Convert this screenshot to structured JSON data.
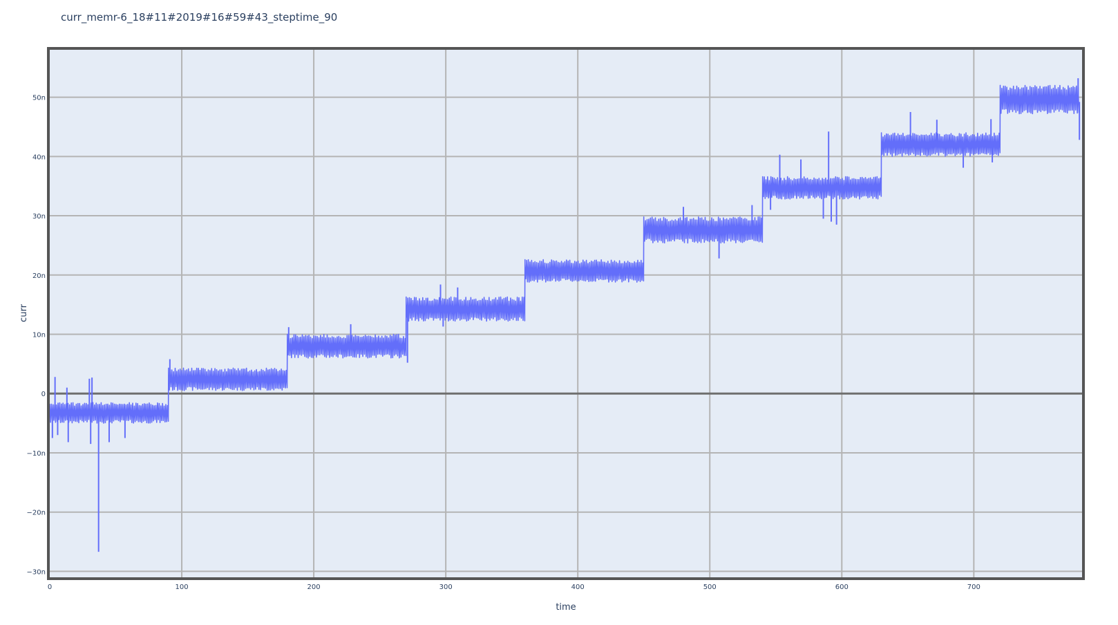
{
  "chart_data": {
    "type": "line",
    "title": "curr_memr-6_18#11#2019#16#59#43_steptime_90",
    "xlabel": "time",
    "ylabel": "curr",
    "xlim": [
      0,
      782
    ],
    "ylim": [
      -31,
      58
    ],
    "x_ticks": [
      0,
      100,
      200,
      300,
      400,
      500,
      600,
      700
    ],
    "x_tick_labels": [
      "0",
      "100",
      "200",
      "300",
      "400",
      "500",
      "600",
      "700"
    ],
    "y_ticks": [
      -30,
      -20,
      -10,
      0,
      10,
      20,
      30,
      40,
      50
    ],
    "y_tick_labels": [
      "−30n",
      "−20n",
      "−10n",
      "0",
      "10n",
      "20n",
      "30n",
      "40n",
      "50n"
    ],
    "y_unit": "n",
    "grid": true,
    "series": [
      {
        "color": "#636efa",
        "step_duration": 90,
        "steps": [
          {
            "x_start": 0,
            "x_end": 90,
            "low": -5,
            "high": -1.5,
            "mean": -3
          },
          {
            "x_start": 90,
            "x_end": 180,
            "low": 0.5,
            "high": 4.3,
            "mean": 2.4
          },
          {
            "x_start": 180,
            "x_end": 270,
            "low": 6,
            "high": 10,
            "mean": 7.8
          },
          {
            "x_start": 270,
            "x_end": 360,
            "low": 12.2,
            "high": 16.3,
            "mean": 14
          },
          {
            "x_start": 360,
            "x_end": 450,
            "low": 18.8,
            "high": 22.6,
            "mean": 20.6
          },
          {
            "x_start": 450,
            "x_end": 540,
            "low": 25.4,
            "high": 29.8,
            "mean": 27.4
          },
          {
            "x_start": 540,
            "x_end": 630,
            "low": 32.8,
            "high": 36.6,
            "mean": 34.7
          },
          {
            "x_start": 630,
            "x_end": 720,
            "low": 40,
            "high": 44,
            "mean": 42
          },
          {
            "x_start": 720,
            "x_end": 780,
            "low": 47.2,
            "high": 52,
            "mean": 49.2
          }
        ],
        "spikes": [
          {
            "x": 2,
            "y": -7.5
          },
          {
            "x": 4,
            "y": 2.8
          },
          {
            "x": 6,
            "y": -7
          },
          {
            "x": 13,
            "y": 1
          },
          {
            "x": 14,
            "y": -8.2
          },
          {
            "x": 30,
            "y": 2.5
          },
          {
            "x": 31,
            "y": -8.5
          },
          {
            "x": 32,
            "y": 2.7
          },
          {
            "x": 37,
            "y": -26.7
          },
          {
            "x": 45,
            "y": -8.2
          },
          {
            "x": 57,
            "y": -7.5
          },
          {
            "x": 91,
            "y": 5.8
          },
          {
            "x": 181,
            "y": 11.2
          },
          {
            "x": 228,
            "y": 11.7
          },
          {
            "x": 271,
            "y": 5.2
          },
          {
            "x": 296,
            "y": 18.4
          },
          {
            "x": 298,
            "y": 11.3
          },
          {
            "x": 309,
            "y": 17.9
          },
          {
            "x": 480,
            "y": 31.5
          },
          {
            "x": 507,
            "y": 22.8
          },
          {
            "x": 532,
            "y": 31.8
          },
          {
            "x": 546,
            "y": 31
          },
          {
            "x": 553,
            "y": 40.3
          },
          {
            "x": 569,
            "y": 39.5
          },
          {
            "x": 586,
            "y": 29.5
          },
          {
            "x": 590,
            "y": 44.2
          },
          {
            "x": 592,
            "y": 29
          },
          {
            "x": 596,
            "y": 28.5
          },
          {
            "x": 652,
            "y": 47.5
          },
          {
            "x": 672,
            "y": 46.2
          },
          {
            "x": 692,
            "y": 38.1
          },
          {
            "x": 713,
            "y": 46.3
          },
          {
            "x": 714,
            "y": 39
          },
          {
            "x": 779,
            "y": 53.2
          },
          {
            "x": 780,
            "y": 42.8
          }
        ]
      }
    ]
  }
}
